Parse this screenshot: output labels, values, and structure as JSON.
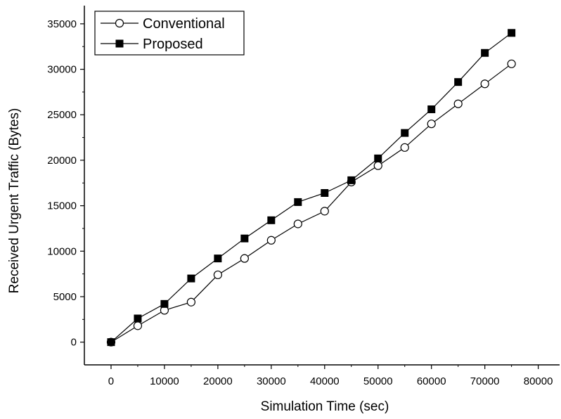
{
  "chart_data": {
    "type": "line",
    "xlabel": "Simulation Time (sec)",
    "ylabel": "Received Urgent Traffic (Bytes)",
    "xlim": [
      -5000,
      84000
    ],
    "ylim": [
      -2500,
      37000
    ],
    "x_ticks": [
      0,
      10000,
      20000,
      30000,
      40000,
      50000,
      60000,
      70000,
      80000
    ],
    "y_ticks": [
      0,
      5000,
      10000,
      15000,
      20000,
      25000,
      30000,
      35000
    ],
    "grid": false,
    "legend_position": "top-left",
    "x": [
      0,
      5000,
      10000,
      15000,
      20000,
      25000,
      30000,
      35000,
      40000,
      45000,
      50000,
      55000,
      60000,
      65000,
      70000,
      75000
    ],
    "series": [
      {
        "name": "Conventional",
        "marker": "open-circle",
        "color": "#000000",
        "values": [
          0,
          1800,
          3500,
          4400,
          7400,
          9200,
          11200,
          13000,
          14400,
          17600,
          19400,
          21400,
          24000,
          26200,
          28400,
          30600
        ]
      },
      {
        "name": "Proposed",
        "marker": "filled-square",
        "color": "#000000",
        "values": [
          0,
          2600,
          4200,
          7000,
          9200,
          11400,
          13400,
          15400,
          16400,
          17800,
          20200,
          23000,
          25600,
          28600,
          31800,
          34000
        ]
      }
    ]
  }
}
